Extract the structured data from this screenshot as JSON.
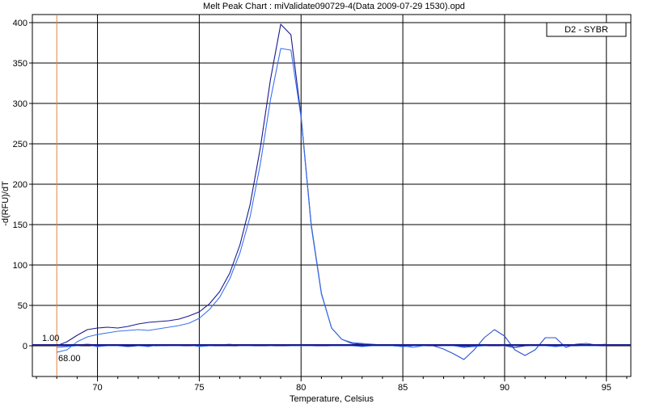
{
  "chart_data": {
    "type": "line",
    "title": "Melt Peak Chart : miValidate090729-4(Data 2009-07-29 1530).opd",
    "xlabel": "Temperature, Celsius",
    "ylabel": "-d(RFU)/dT",
    "xlim": [
      66.8,
      96.2
    ],
    "ylim": [
      -38,
      410
    ],
    "xticks": [
      70,
      75,
      80,
      85,
      90,
      95
    ],
    "yticks": [
      0,
      50,
      100,
      150,
      200,
      250,
      300,
      350,
      400
    ],
    "grid": true,
    "legend": {
      "entries": [
        "D2 - SYBR"
      ],
      "placement": "top-right"
    },
    "threshold": {
      "value": 1.0,
      "label": "1.00"
    },
    "marker": {
      "x": 68.0,
      "label": "68.00"
    },
    "colors": {
      "dark": "#1a1a8c",
      "medium": "#2b4fd4",
      "light": "#3b72f0",
      "marker": "#e08040",
      "threshold": "#1a1a8c"
    },
    "series": [
      {
        "color": "dark",
        "x": [
          68,
          68.5,
          69,
          69.5,
          70,
          70.5,
          71,
          71.5,
          72,
          72.5,
          73,
          73.5,
          74,
          74.5,
          75,
          75.5,
          76,
          76.5,
          77,
          77.5,
          78,
          78.5,
          79,
          79.5,
          80,
          80.5,
          81,
          81.5,
          82,
          82.5,
          83,
          83.5,
          84,
          84.5,
          85,
          85.5,
          86,
          86.5,
          87,
          87.5,
          88,
          88.5,
          89,
          89.5,
          90,
          90.5,
          91,
          91.5,
          92,
          92.5,
          93,
          93.5,
          94,
          94.5,
          95
        ],
        "y": [
          0,
          5,
          13,
          20,
          22,
          23,
          22,
          24,
          27,
          29,
          30,
          31,
          33,
          37,
          42,
          52,
          67,
          90,
          125,
          175,
          245,
          330,
          398,
          385,
          285,
          150,
          65,
          22,
          8,
          3,
          2,
          1,
          1,
          0,
          0,
          0,
          0,
          0,
          0,
          0,
          0,
          0,
          0,
          0,
          0,
          0,
          0,
          0,
          0,
          0,
          0,
          0,
          0,
          0,
          0
        ]
      },
      {
        "color": "light",
        "x": [
          68,
          68.5,
          69,
          69.5,
          70,
          70.5,
          71,
          71.5,
          72,
          72.5,
          73,
          73.5,
          74,
          74.5,
          75,
          75.5,
          76,
          76.5,
          77,
          77.5,
          78,
          78.5,
          79,
          79.5,
          80,
          80.5,
          81,
          81.5,
          82,
          82.5,
          83,
          83.5,
          84,
          84.5,
          85,
          85.5,
          86,
          86.5,
          87,
          87.5,
          88,
          88.5,
          89,
          89.5,
          90,
          90.5,
          91,
          91.5,
          92,
          92.5,
          93,
          93.5,
          94,
          94.5,
          95
        ],
        "y": [
          -8,
          -5,
          5,
          11,
          14,
          16,
          18,
          19,
          20,
          19,
          21,
          23,
          25,
          28,
          34,
          45,
          60,
          83,
          115,
          160,
          225,
          305,
          368,
          366,
          283,
          148,
          64,
          22,
          8,
          4,
          3,
          2,
          1,
          0,
          0,
          -2,
          0,
          0,
          0,
          0,
          0,
          0,
          0,
          0,
          0,
          0,
          0,
          0,
          0,
          0,
          0,
          0,
          0,
          0,
          0
        ]
      },
      {
        "color": "medium",
        "x": [
          68,
          68.5,
          69,
          69.5,
          70,
          70.5,
          71,
          71.5,
          72,
          72.5,
          73,
          73.5,
          74,
          74.5,
          75,
          75.5,
          76,
          76.5,
          77,
          77.5,
          78,
          78.5,
          79,
          79.5,
          80,
          80.5,
          81,
          81.5,
          82,
          82.5,
          83,
          83.5,
          84,
          84.5,
          85,
          85.5,
          86,
          86.5,
          87,
          87.5,
          88,
          88.5,
          89,
          89.5,
          90,
          90.5,
          91,
          91.5,
          92,
          92.5,
          93,
          93.5,
          94,
          94.5,
          95
        ],
        "y": [
          0,
          0,
          1,
          2,
          1,
          0,
          0,
          -1,
          0,
          1,
          0,
          0,
          1,
          0,
          0,
          0,
          0,
          1,
          0,
          0,
          0,
          1,
          1,
          1,
          0,
          0,
          0,
          0,
          0,
          0,
          0,
          0,
          0,
          0,
          -1,
          0,
          0,
          0,
          -4,
          -10,
          -17,
          -5,
          10,
          20,
          12,
          -5,
          -12,
          -5,
          10,
          10,
          -2,
          2,
          3,
          1,
          2
        ]
      },
      {
        "color": "dark",
        "x": [
          68,
          68.5,
          69,
          69.5,
          70,
          70.5,
          71,
          71.5,
          72,
          72.5,
          73,
          73.5,
          74,
          74.5,
          75,
          75.5,
          76,
          76.5,
          77,
          77.5,
          78,
          78.5,
          79,
          79.5,
          80,
          80.5,
          81,
          81.5,
          82,
          82.5,
          83,
          83.5,
          84,
          84.5,
          85,
          85.5,
          86,
          86.5,
          87,
          87.5,
          88,
          88.5,
          89,
          89.5,
          90,
          90.5,
          91,
          91.5,
          92,
          92.5,
          93,
          93.5,
          94,
          94.5,
          95
        ],
        "y": [
          0,
          0,
          1,
          1,
          0,
          0,
          1,
          0,
          0,
          0,
          1,
          0,
          0,
          0,
          1,
          0,
          0,
          0,
          1,
          0,
          0,
          0,
          0,
          0,
          0,
          0,
          0,
          0,
          0,
          0,
          0,
          0,
          0,
          0,
          0,
          0,
          0,
          0,
          0,
          0,
          -1,
          0,
          0,
          0,
          0,
          -2,
          0,
          1,
          0,
          0,
          0,
          0,
          1,
          0,
          0
        ]
      },
      {
        "color": "light",
        "x": [
          68,
          68.5,
          69,
          69.5,
          70,
          70.5,
          71,
          71.5,
          72,
          72.5,
          73,
          73.5,
          74,
          74.5,
          75,
          75.5,
          76,
          76.5,
          77,
          77.5,
          78,
          78.5,
          79,
          79.5,
          80,
          80.5,
          81,
          81.5,
          82,
          82.5,
          83,
          83.5,
          84,
          84.5,
          85,
          85.5,
          86,
          86.5,
          87,
          87.5,
          88,
          88.5,
          89,
          89.5,
          90,
          90.5,
          91,
          91.5,
          92,
          92.5,
          93,
          93.5,
          94,
          94.5,
          95
        ],
        "y": [
          -2,
          -1,
          0,
          1,
          -1,
          0,
          0,
          1,
          0,
          -1,
          1,
          0,
          0,
          1,
          -1,
          0,
          1,
          2,
          0,
          0,
          1,
          0,
          1,
          0,
          0,
          0,
          1,
          0,
          0,
          0,
          -1,
          0,
          0,
          0,
          -1,
          0,
          0,
          1,
          0,
          0,
          -2,
          -1,
          0,
          1,
          0,
          0,
          1,
          0,
          0,
          -1,
          0,
          1,
          0,
          0,
          1
        ]
      }
    ]
  }
}
